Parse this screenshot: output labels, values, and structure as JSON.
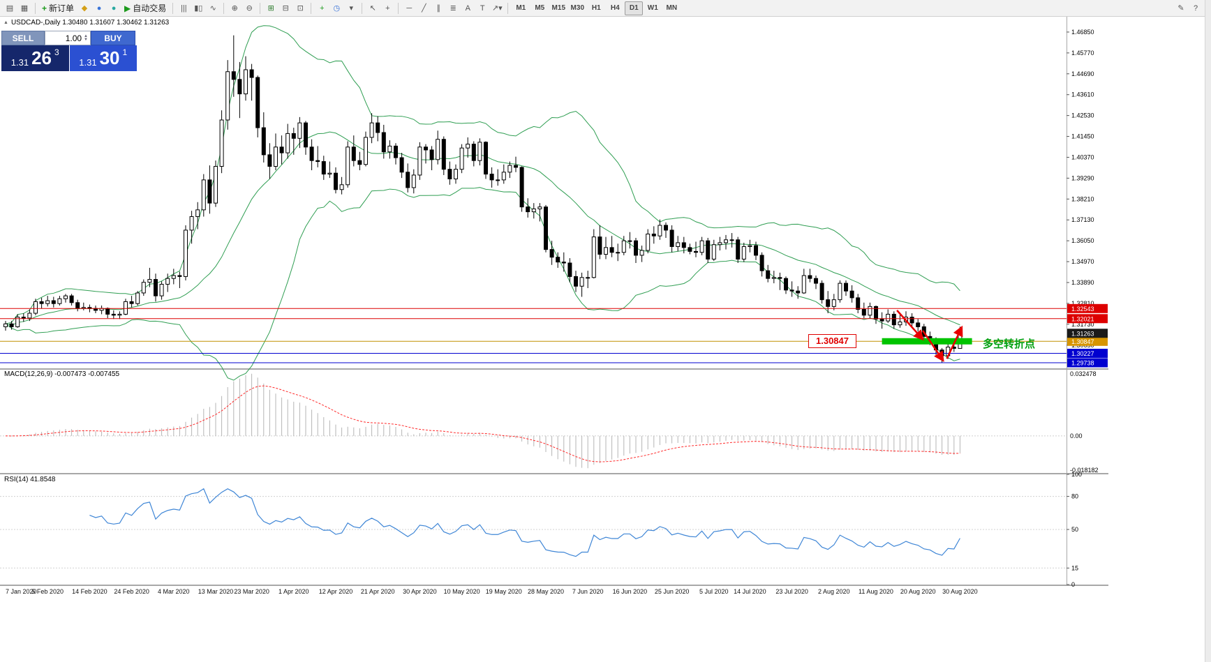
{
  "symbol_header": "USDCAD-,Daily 1.30480 1.31607 1.30462 1.31263",
  "toolbar": {
    "new_order_label": "新订单",
    "autotrading_label": "自动交易",
    "timeframes": [
      "M1",
      "M5",
      "M15",
      "M30",
      "H1",
      "H4",
      "D1",
      "W1",
      "MN"
    ],
    "active_timeframe": "D1",
    "icons": [
      {
        "type": "icon",
        "name": "chart-window-icon",
        "glyph": "▤"
      },
      {
        "type": "icon",
        "name": "profiles-icon",
        "glyph": "▦"
      },
      {
        "type": "sep"
      },
      {
        "type": "new-order"
      },
      {
        "type": "icon",
        "name": "metaeditor-icon",
        "glyph": "◆",
        "color": "#d4a017"
      },
      {
        "type": "icon",
        "name": "market-icon",
        "glyph": "●",
        "color": "#3b74d8"
      },
      {
        "type": "icon",
        "name": "signals-icon",
        "glyph": "●",
        "color": "#2aa9a0"
      },
      {
        "type": "auto-trading"
      },
      {
        "type": "sep"
      },
      {
        "type": "icon",
        "name": "bar-chart-icon",
        "glyph": "|||"
      },
      {
        "type": "icon",
        "name": "candlestick-chart-icon",
        "glyph": "▮▯"
      },
      {
        "type": "icon",
        "name": "line-chart-icon",
        "glyph": "∿"
      },
      {
        "type": "sep"
      },
      {
        "type": "icon",
        "name": "zoom-in-icon",
        "glyph": "⊕"
      },
      {
        "type": "icon",
        "name": "zoom-out-icon",
        "glyph": "⊖"
      },
      {
        "type": "sep"
      },
      {
        "type": "icon",
        "name": "tile-windows-icon",
        "glyph": "⊞",
        "color": "#2f7d2f"
      },
      {
        "type": "icon",
        "name": "cascade-windows-icon",
        "glyph": "⊟"
      },
      {
        "type": "icon",
        "name": "arrange-windows-icon",
        "glyph": "⊡"
      },
      {
        "type": "sep"
      },
      {
        "type": "icon",
        "name": "new-chart-icon",
        "glyph": "+",
        "color": "#1d9a1d"
      },
      {
        "type": "icon",
        "name": "period-clock-icon",
        "glyph": "◷",
        "color": "#3b74d8"
      },
      {
        "type": "icon",
        "name": "templates-icon",
        "glyph": "▾"
      },
      {
        "type": "sep"
      },
      {
        "type": "icon",
        "name": "cursor-icon",
        "glyph": "↖"
      },
      {
        "type": "icon",
        "name": "crosshair-icon",
        "glyph": "+"
      },
      {
        "type": "sep"
      },
      {
        "type": "icon",
        "name": "horizontal-line-icon",
        "glyph": "─"
      },
      {
        "type": "icon",
        "name": "trendline-icon",
        "glyph": "╱"
      },
      {
        "type": "icon",
        "name": "channel-icon",
        "glyph": "∥"
      },
      {
        "type": "icon",
        "name": "fibonacci-icon",
        "glyph": "≣"
      },
      {
        "type": "icon",
        "name": "text-icon",
        "glyph": "A"
      },
      {
        "type": "icon",
        "name": "label-icon",
        "glyph": "T"
      },
      {
        "type": "icon",
        "name": "shapes-icon",
        "glyph": "↗▾"
      },
      {
        "type": "sep"
      },
      {
        "type": "timeframes"
      },
      {
        "type": "spacer"
      },
      {
        "type": "icon",
        "name": "edit-icon",
        "glyph": "✎"
      },
      {
        "type": "icon",
        "name": "help-icon",
        "glyph": "?"
      }
    ]
  },
  "trade_panel": {
    "sell_label": "SELL",
    "buy_label": "BUY",
    "volume": "1.00",
    "sell_price": {
      "prefix": "1.31",
      "main": "26",
      "sup": "3"
    },
    "buy_price": {
      "prefix": "1.31",
      "main": "30",
      "sup": "1"
    }
  },
  "chart_data": {
    "type": "candlestick",
    "symbol": "USDCAD",
    "timeframe": "Daily",
    "price_range": {
      "min": 1.2945,
      "max": 1.4757
    },
    "price_axis_ticks": [
      "1.46850",
      "1.45770",
      "1.44690",
      "1.43610",
      "1.42530",
      "1.41450",
      "1.40370",
      "1.39290",
      "1.38210",
      "1.37130",
      "1.36050",
      "1.34970",
      "1.33890",
      "1.32810",
      "1.31730",
      "1.30650"
    ],
    "date_ticks": [
      "7 Jan 2020",
      "5 Feb 2020",
      "14 Feb 2020",
      "24 Feb 2020",
      "4 Mar 2020",
      "13 Mar 2020",
      "23 Mar 2020",
      "1 Apr 2020",
      "12 Apr 2020",
      "21 Apr 2020",
      "30 Apr 2020",
      "10 May 2020",
      "19 May 2020",
      "28 May 2020",
      "7 Jun 2020",
      "16 Jun 2020",
      "25 Jun 2020",
      "5 Jul 2020",
      "14 Jul 2020",
      "23 Jul 2020",
      "2 Aug 2020",
      "11 Aug 2020",
      "20 Aug 2020",
      "30 Aug 2020"
    ],
    "bollinger": {
      "period": 20,
      "deviation": 2,
      "color": "#2f9e52"
    },
    "candles": [
      [
        1.316,
        1.319,
        1.314,
        1.3175
      ],
      [
        1.3175,
        1.319,
        1.3145,
        1.316
      ],
      [
        1.316,
        1.3225,
        1.3155,
        1.321
      ],
      [
        1.321,
        1.323,
        1.3185,
        1.3205
      ],
      [
        1.3205,
        1.325,
        1.319,
        1.323
      ],
      [
        1.323,
        1.3305,
        1.322,
        1.329
      ],
      [
        1.329,
        1.331,
        1.3255,
        1.328
      ],
      [
        1.328,
        1.332,
        1.3265,
        1.3295
      ],
      [
        1.3295,
        1.3315,
        1.326,
        1.328
      ],
      [
        1.328,
        1.332,
        1.327,
        1.3305
      ],
      [
        1.3305,
        1.333,
        1.3285,
        1.332
      ],
      [
        1.332,
        1.333,
        1.327,
        1.3285
      ],
      [
        1.3285,
        1.33,
        1.324,
        1.3255
      ],
      [
        1.3255,
        1.3285,
        1.3245,
        1.326
      ],
      [
        1.326,
        1.3275,
        1.3235,
        1.3255
      ],
      [
        1.3255,
        1.327,
        1.323,
        1.3245
      ],
      [
        1.3245,
        1.327,
        1.3225,
        1.3255
      ],
      [
        1.3255,
        1.326,
        1.3205,
        1.3225
      ],
      [
        1.3225,
        1.3245,
        1.32,
        1.322
      ],
      [
        1.322,
        1.324,
        1.32,
        1.3225
      ],
      [
        1.3225,
        1.3305,
        1.322,
        1.329
      ],
      [
        1.329,
        1.332,
        1.326,
        1.328
      ],
      [
        1.328,
        1.3345,
        1.327,
        1.3335
      ],
      [
        1.3335,
        1.3405,
        1.332,
        1.339
      ],
      [
        1.339,
        1.3465,
        1.3365,
        1.3405
      ],
      [
        1.3405,
        1.3435,
        1.329,
        1.332
      ],
      [
        1.332,
        1.3395,
        1.33,
        1.338
      ],
      [
        1.338,
        1.3435,
        1.334,
        1.341
      ],
      [
        1.341,
        1.346,
        1.338,
        1.3425
      ],
      [
        1.3425,
        1.3445,
        1.336,
        1.342
      ],
      [
        1.342,
        1.3685,
        1.34,
        1.366
      ],
      [
        1.366,
        1.376,
        1.359,
        1.373
      ],
      [
        1.373,
        1.3805,
        1.3665,
        1.3765
      ],
      [
        1.3765,
        1.395,
        1.373,
        1.392
      ],
      [
        1.392,
        1.3995,
        1.3745,
        1.38
      ],
      [
        1.38,
        1.402,
        1.378,
        1.399
      ],
      [
        1.399,
        1.428,
        1.3955,
        1.423
      ],
      [
        1.423,
        1.454,
        1.418,
        1.448
      ],
      [
        1.448,
        1.4668,
        1.435,
        1.444
      ],
      [
        1.444,
        1.453,
        1.424,
        1.4365
      ],
      [
        1.4365,
        1.456,
        1.433,
        1.449
      ],
      [
        1.449,
        1.452,
        1.433,
        1.445
      ],
      [
        1.445,
        1.446,
        1.414,
        1.419
      ],
      [
        1.419,
        1.427,
        1.401,
        1.405
      ],
      [
        1.405,
        1.411,
        1.3925,
        1.399
      ],
      [
        1.399,
        1.416,
        1.397,
        1.409
      ],
      [
        1.409,
        1.415,
        1.4,
        1.406
      ],
      [
        1.406,
        1.421,
        1.403,
        1.416
      ],
      [
        1.416,
        1.419,
        1.405,
        1.4135
      ],
      [
        1.4135,
        1.4245,
        1.4085,
        1.4215
      ],
      [
        1.4215,
        1.4225,
        1.405,
        1.409
      ],
      [
        1.409,
        1.413,
        1.397,
        1.402
      ],
      [
        1.402,
        1.4095,
        1.3985,
        1.4015
      ],
      [
        1.4015,
        1.4045,
        1.392,
        1.395
      ],
      [
        1.395,
        1.4015,
        1.393,
        1.3955
      ],
      [
        1.3955,
        1.3985,
        1.385,
        1.387
      ],
      [
        1.387,
        1.3935,
        1.3845,
        1.3895
      ],
      [
        1.3895,
        1.412,
        1.388,
        1.409
      ],
      [
        1.409,
        1.415,
        1.399,
        1.402
      ],
      [
        1.402,
        1.4065,
        1.397,
        1.4
      ],
      [
        1.4,
        1.417,
        1.399,
        1.414
      ],
      [
        1.414,
        1.4265,
        1.411,
        1.4215
      ],
      [
        1.4215,
        1.425,
        1.412,
        1.4165
      ],
      [
        1.4165,
        1.4205,
        1.403,
        1.4065
      ],
      [
        1.4065,
        1.4125,
        1.403,
        1.4095
      ],
      [
        1.4095,
        1.411,
        1.4,
        1.4035
      ],
      [
        1.4035,
        1.406,
        1.393,
        1.396
      ],
      [
        1.396,
        1.4005,
        1.3855,
        1.388
      ],
      [
        1.388,
        1.3975,
        1.385,
        1.3945
      ],
      [
        1.3945,
        1.4115,
        1.392,
        1.409
      ],
      [
        1.409,
        1.4105,
        1.4005,
        1.4075
      ],
      [
        1.4075,
        1.4095,
        1.397,
        1.4025
      ],
      [
        1.4025,
        1.4175,
        1.4,
        1.413
      ],
      [
        1.413,
        1.4145,
        1.3945,
        1.3975
      ],
      [
        1.3975,
        1.4015,
        1.3895,
        1.3925
      ],
      [
        1.3925,
        1.4,
        1.39,
        1.3975
      ],
      [
        1.3975,
        1.4105,
        1.3955,
        1.4085
      ],
      [
        1.4085,
        1.414,
        1.4035,
        1.4105
      ],
      [
        1.4105,
        1.412,
        1.399,
        1.402
      ],
      [
        1.402,
        1.4135,
        1.3995,
        1.4115
      ],
      [
        1.4115,
        1.412,
        1.3925,
        1.395
      ],
      [
        1.395,
        1.3985,
        1.388,
        1.392
      ],
      [
        1.392,
        1.3975,
        1.389,
        1.392
      ],
      [
        1.392,
        1.4,
        1.39,
        1.396
      ],
      [
        1.396,
        1.4015,
        1.393,
        1.3995
      ],
      [
        1.3995,
        1.404,
        1.396,
        1.3985
      ],
      [
        1.3985,
        1.399,
        1.3755,
        1.378
      ],
      [
        1.378,
        1.3825,
        1.3725,
        1.3755
      ],
      [
        1.3755,
        1.38,
        1.372,
        1.377
      ],
      [
        1.377,
        1.38,
        1.3705,
        1.378
      ],
      [
        1.378,
        1.379,
        1.3545,
        1.356
      ],
      [
        1.356,
        1.3605,
        1.348,
        1.352
      ],
      [
        1.352,
        1.3545,
        1.3465,
        1.3495
      ],
      [
        1.3495,
        1.3545,
        1.3445,
        1.349
      ],
      [
        1.349,
        1.3515,
        1.339,
        1.342
      ],
      [
        1.342,
        1.345,
        1.334,
        1.337
      ],
      [
        1.337,
        1.344,
        1.3315,
        1.3415
      ],
      [
        1.3415,
        1.345,
        1.336,
        1.3415
      ],
      [
        1.3415,
        1.3665,
        1.341,
        1.3625
      ],
      [
        1.3625,
        1.3685,
        1.351,
        1.3535
      ],
      [
        1.3535,
        1.3625,
        1.351,
        1.357
      ],
      [
        1.357,
        1.363,
        1.352,
        1.3545
      ],
      [
        1.3545,
        1.359,
        1.35,
        1.3545
      ],
      [
        1.3545,
        1.363,
        1.353,
        1.3605
      ],
      [
        1.3605,
        1.365,
        1.3565,
        1.3605
      ],
      [
        1.3605,
        1.362,
        1.349,
        1.353
      ],
      [
        1.353,
        1.358,
        1.3495,
        1.3555
      ],
      [
        1.3555,
        1.3665,
        1.354,
        1.364
      ],
      [
        1.364,
        1.368,
        1.359,
        1.363
      ],
      [
        1.363,
        1.3715,
        1.361,
        1.3685
      ],
      [
        1.3685,
        1.37,
        1.362,
        1.366
      ],
      [
        1.366,
        1.3685,
        1.3545,
        1.3575
      ],
      [
        1.3575,
        1.363,
        1.355,
        1.3595
      ],
      [
        1.3595,
        1.3625,
        1.354,
        1.357
      ],
      [
        1.357,
        1.359,
        1.3535,
        1.355
      ],
      [
        1.355,
        1.36,
        1.352,
        1.3545
      ],
      [
        1.3545,
        1.3625,
        1.353,
        1.3605
      ],
      [
        1.3605,
        1.362,
        1.349,
        1.351
      ],
      [
        1.351,
        1.361,
        1.35,
        1.3585
      ],
      [
        1.3585,
        1.3625,
        1.3555,
        1.3595
      ],
      [
        1.3595,
        1.3635,
        1.356,
        1.361
      ],
      [
        1.361,
        1.3645,
        1.357,
        1.361
      ],
      [
        1.361,
        1.3625,
        1.349,
        1.351
      ],
      [
        1.351,
        1.3595,
        1.3495,
        1.3575
      ],
      [
        1.3575,
        1.361,
        1.3545,
        1.358
      ],
      [
        1.358,
        1.36,
        1.3505,
        1.353
      ],
      [
        1.353,
        1.3545,
        1.342,
        1.345
      ],
      [
        1.345,
        1.348,
        1.339,
        1.341
      ],
      [
        1.341,
        1.345,
        1.3385,
        1.3415
      ],
      [
        1.3415,
        1.344,
        1.335,
        1.341
      ],
      [
        1.341,
        1.342,
        1.333,
        1.335
      ],
      [
        1.335,
        1.3395,
        1.3315,
        1.3345
      ],
      [
        1.3345,
        1.337,
        1.3305,
        1.3335
      ],
      [
        1.3335,
        1.346,
        1.333,
        1.3425
      ],
      [
        1.3425,
        1.346,
        1.339,
        1.341
      ],
      [
        1.341,
        1.3425,
        1.3355,
        1.3385
      ],
      [
        1.3385,
        1.34,
        1.328,
        1.33
      ],
      [
        1.33,
        1.3345,
        1.323,
        1.3265
      ],
      [
        1.3265,
        1.333,
        1.3245,
        1.33
      ],
      [
        1.33,
        1.34,
        1.3285,
        1.3385
      ],
      [
        1.3385,
        1.34,
        1.332,
        1.3345
      ],
      [
        1.3345,
        1.3375,
        1.3285,
        1.331
      ],
      [
        1.331,
        1.333,
        1.323,
        1.325
      ],
      [
        1.325,
        1.3285,
        1.3205,
        1.322
      ],
      [
        1.322,
        1.3285,
        1.3205,
        1.3265
      ],
      [
        1.3265,
        1.327,
        1.3175,
        1.32
      ],
      [
        1.32,
        1.3235,
        1.315,
        1.319
      ],
      [
        1.319,
        1.325,
        1.318,
        1.3225
      ],
      [
        1.3225,
        1.324,
        1.315,
        1.317
      ],
      [
        1.317,
        1.323,
        1.3155,
        1.3185
      ],
      [
        1.3185,
        1.324,
        1.3165,
        1.321
      ],
      [
        1.321,
        1.323,
        1.3155,
        1.318
      ],
      [
        1.318,
        1.32,
        1.3135,
        1.316
      ],
      [
        1.316,
        1.3175,
        1.309,
        1.311
      ],
      [
        1.311,
        1.3135,
        1.3065,
        1.3095
      ],
      [
        1.3095,
        1.3105,
        1.3015,
        1.304
      ],
      [
        1.304,
        1.305,
        1.2974,
        1.301
      ],
      [
        1.301,
        1.307,
        1.2994,
        1.3055
      ],
      [
        1.3055,
        1.31,
        1.303,
        1.3048
      ],
      [
        1.3048,
        1.3161,
        1.3046,
        1.3126
      ]
    ],
    "hlines": [
      {
        "price": 1.32543,
        "color": "#dd0000",
        "tag_bg": "#dd0000",
        "tag_text": "1.32543"
      },
      {
        "price": 1.32021,
        "color": "#dd0000",
        "tag_bg": "#dd0000",
        "tag_text": "1.32021"
      },
      {
        "price": 1.30847,
        "color": "#c09000",
        "tag_bg": "#d79500",
        "tag_text": "1.30847"
      },
      {
        "price": 1.30227,
        "color": "#0000d0",
        "tag_bg": "#0000d0",
        "tag_text": "1.30227"
      },
      {
        "price": 1.29738,
        "color": "#0000d0",
        "tag_bg": "#0000d0",
        "tag_text": "1.29738"
      }
    ],
    "current_price_tag": {
      "price": 1.31263,
      "text": "1.31263",
      "bg": "#1a1a1a"
    },
    "green_zone": {
      "price": 1.3085,
      "from_index": 146,
      "to_index": 161,
      "color": "#00c400"
    },
    "arrows": [
      {
        "from": [
          148.5,
          1.3245
        ],
        "to": [
          152.8,
          1.3095
        ]
      },
      {
        "from": [
          152.8,
          1.314
        ],
        "to": [
          156.2,
          1.2985
        ]
      },
      {
        "from": [
          156.8,
          1.2995
        ],
        "to": [
          159.3,
          1.3158
        ]
      }
    ],
    "annotations": {
      "price_label": "1.30847",
      "pivot_label": "多空转折点"
    },
    "macd": {
      "label": "MACD(12,26,9) -0.007473 -0.007455",
      "params": [
        12,
        26,
        9
      ],
      "axis_max": "0.032478",
      "axis_zero": "0.00",
      "axis_min": "-0.018182",
      "range": {
        "min": -0.018182,
        "max": 0.032478
      }
    },
    "rsi": {
      "label": "RSI(14) 41.8548",
      "period": 14,
      "value": 41.8548,
      "axis_ticks": [
        100,
        80,
        50,
        15,
        0
      ],
      "levels": [
        80,
        50,
        15
      ]
    }
  }
}
